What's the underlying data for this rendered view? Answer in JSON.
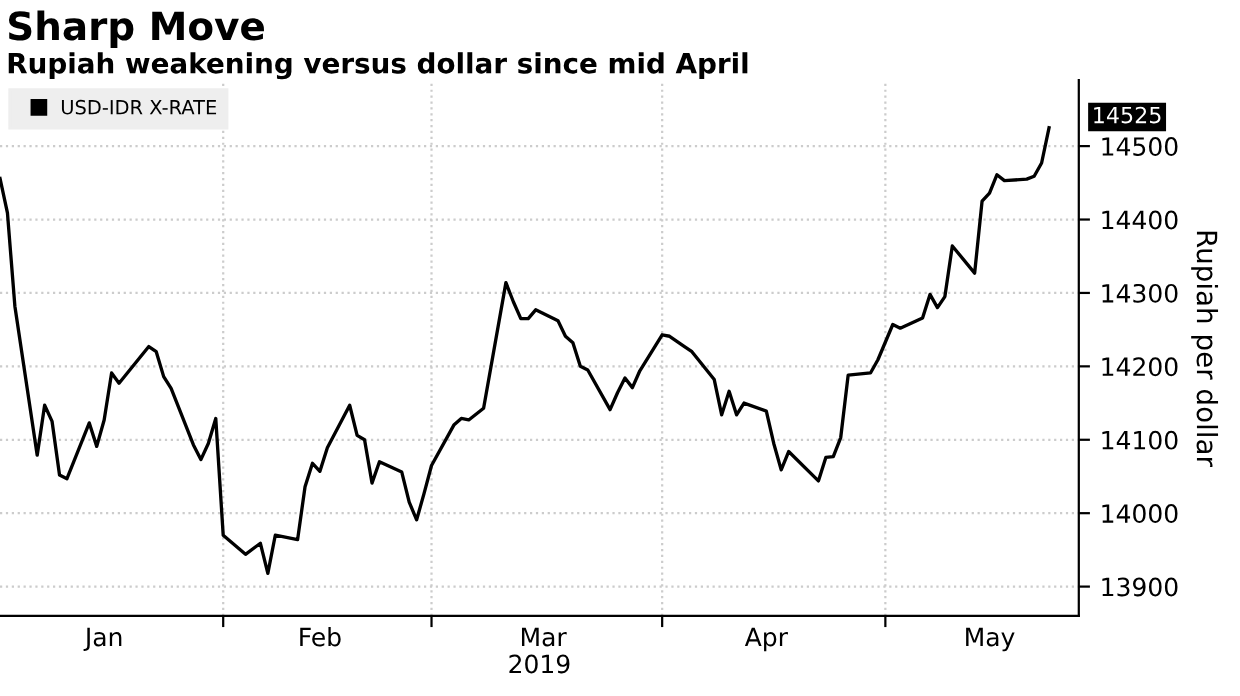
{
  "chart_data": {
    "type": "line",
    "title": "Sharp Move",
    "subtitle": "Rupiah weakening versus dollar since mid April",
    "ylabel": "Rupiah per dollar",
    "xlabel": "2019",
    "x": [
      "2019-01-02",
      "2019-01-03",
      "2019-01-04",
      "2019-01-07",
      "2019-01-08",
      "2019-01-09",
      "2019-01-10",
      "2019-01-11",
      "2019-01-14",
      "2019-01-15",
      "2019-01-16",
      "2019-01-17",
      "2019-01-18",
      "2019-01-22",
      "2019-01-23",
      "2019-01-24",
      "2019-01-25",
      "2019-01-28",
      "2019-01-29",
      "2019-01-30",
      "2019-01-31",
      "2019-02-01",
      "2019-02-04",
      "2019-02-06",
      "2019-02-07",
      "2019-02-08",
      "2019-02-11",
      "2019-02-12",
      "2019-02-13",
      "2019-02-14",
      "2019-02-15",
      "2019-02-18",
      "2019-02-19",
      "2019-02-20",
      "2019-02-21",
      "2019-02-22",
      "2019-02-25",
      "2019-02-26",
      "2019-02-27",
      "2019-02-28",
      "2019-03-01",
      "2019-03-04",
      "2019-03-05",
      "2019-03-06",
      "2019-03-08",
      "2019-03-11",
      "2019-03-12",
      "2019-03-13",
      "2019-03-14",
      "2019-03-15",
      "2019-03-18",
      "2019-03-19",
      "2019-03-20",
      "2019-03-21",
      "2019-03-22",
      "2019-03-25",
      "2019-03-26",
      "2019-03-27",
      "2019-03-28",
      "2019-03-29",
      "2019-04-01",
      "2019-04-02",
      "2019-04-04",
      "2019-04-05",
      "2019-04-08",
      "2019-04-09",
      "2019-04-10",
      "2019-04-11",
      "2019-04-12",
      "2019-04-15",
      "2019-04-16",
      "2019-04-17",
      "2019-04-18",
      "2019-04-22",
      "2019-04-23",
      "2019-04-24",
      "2019-04-25",
      "2019-04-26",
      "2019-04-29",
      "2019-04-30",
      "2019-05-02",
      "2019-05-03",
      "2019-05-06",
      "2019-05-07",
      "2019-05-08",
      "2019-05-09",
      "2019-05-10",
      "2019-05-13",
      "2019-05-14",
      "2019-05-15",
      "2019-05-16",
      "2019-05-17",
      "2019-05-20",
      "2019-05-21",
      "2019-05-22",
      "2019-05-23"
    ],
    "series": [
      {
        "name": "USD-IDR X-RATE",
        "color": "#000000",
        "values": [
          14456,
          14409,
          14282,
          14079,
          14147,
          14125,
          14052,
          14047,
          14123,
          14091,
          14127,
          14191,
          14177,
          14227,
          14220,
          14186,
          14170,
          14093,
          14073,
          14095,
          14129,
          13970,
          13944,
          13959,
          13918,
          13970,
          13964,
          14036,
          14068,
          14057,
          14089,
          14147,
          14106,
          14100,
          14041,
          14070,
          14056,
          14015,
          13991,
          14027,
          14065,
          14120,
          14129,
          14127,
          14143,
          14314,
          14288,
          14265,
          14265,
          14277,
          14262,
          14241,
          14232,
          14200,
          14195,
          14141,
          14164,
          14184,
          14171,
          14194,
          14243,
          14241,
          14227,
          14220,
          14182,
          14134,
          14166,
          14134,
          14150,
          14139,
          14095,
          14059,
          14084,
          14044,
          14076,
          14077,
          14103,
          14188,
          14191,
          14209,
          14257,
          14252,
          14266,
          14298,
          14280,
          14295,
          14364,
          14327,
          14425,
          14436,
          14461,
          14453,
          14455,
          14459,
          14477,
          14525
        ]
      }
    ],
    "xlim": [
      "2019-01-02",
      "2019-05-27"
    ],
    "xticks": [
      {
        "value": "2019-01-16",
        "label": "Jan"
      },
      {
        "value": "2019-02-01",
        "label": null
      },
      {
        "value": "2019-02-14",
        "label": "Feb"
      },
      {
        "value": "2019-03-01",
        "label": null
      },
      {
        "value": "2019-03-16",
        "label": "Mar"
      },
      {
        "value": "2019-04-01",
        "label": null
      },
      {
        "value": "2019-04-15",
        "label": "Apr"
      },
      {
        "value": "2019-05-01",
        "label": null
      },
      {
        "value": "2019-05-15",
        "label": "May"
      }
    ],
    "ylim": [
      13860,
      14590
    ],
    "yticks": [
      13900,
      14000,
      14100,
      14200,
      14300,
      14400,
      14500
    ],
    "annotations": [
      {
        "text": "14525",
        "x": "2019-05-23",
        "y": 14525
      }
    ],
    "grid": true,
    "legend": "top left",
    "marker": "none",
    "line_style": "solid"
  }
}
